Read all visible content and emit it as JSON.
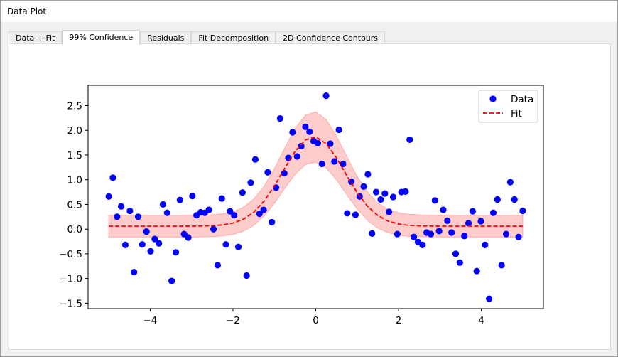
{
  "window": {
    "title": "Data Plot"
  },
  "tabs": [
    "Data + Fit",
    "99% Confidence",
    "Residuals",
    "Fit Decomposition",
    "2D Confidence Contours"
  ],
  "active_tab": 1,
  "chart_data": {
    "type": "scatter",
    "x": [
      -5.0,
      -4.9,
      -4.8,
      -4.7,
      -4.6,
      -4.49,
      -4.39,
      -4.29,
      -4.19,
      -4.09,
      -3.99,
      -3.89,
      -3.79,
      -3.69,
      -3.59,
      -3.48,
      -3.38,
      -3.28,
      -3.18,
      -3.08,
      -2.98,
      -2.88,
      -2.78,
      -2.68,
      -2.58,
      -2.47,
      -2.37,
      -2.27,
      -2.17,
      -2.07,
      -1.97,
      -1.87,
      -1.77,
      -1.67,
      -1.57,
      -1.46,
      -1.36,
      -1.26,
      -1.16,
      -1.06,
      -0.96,
      -0.86,
      -0.76,
      -0.66,
      -0.56,
      -0.45,
      -0.35,
      -0.25,
      -0.15,
      -0.05,
      0.05,
      0.15,
      0.25,
      0.35,
      0.45,
      0.56,
      0.66,
      0.76,
      0.86,
      0.96,
      1.06,
      1.16,
      1.26,
      1.36,
      1.46,
      1.57,
      1.67,
      1.77,
      1.87,
      1.97,
      2.07,
      2.17,
      2.27,
      2.37,
      2.47,
      2.58,
      2.68,
      2.78,
      2.88,
      2.98,
      3.08,
      3.18,
      3.28,
      3.38,
      3.48,
      3.59,
      3.69,
      3.79,
      3.89,
      3.99,
      4.09,
      4.19,
      4.29,
      4.39,
      4.49,
      4.6,
      4.7,
      4.8,
      4.9,
      5.0
    ],
    "series": [
      {
        "name": "Data",
        "color": "#0000ff",
        "values": [
          0.66,
          1.04,
          0.25,
          0.46,
          -0.32,
          0.37,
          -0.87,
          0.25,
          -0.31,
          -0.05,
          -0.45,
          -0.2,
          -0.29,
          0.5,
          0.33,
          -1.05,
          -0.47,
          0.59,
          -0.1,
          -0.17,
          0.67,
          0.28,
          0.34,
          0.33,
          0.39,
          0.0,
          -0.73,
          0.62,
          -0.31,
          0.36,
          0.28,
          -0.36,
          0.74,
          -0.94,
          0.94,
          1.41,
          0.31,
          0.39,
          1.15,
          0.14,
          0.84,
          2.24,
          1.13,
          1.44,
          1.96,
          1.47,
          1.68,
          2.07,
          1.97,
          1.78,
          1.74,
          1.32,
          2.7,
          1.73,
          1.37,
          2.01,
          1.32,
          0.32,
          0.96,
          0.29,
          0.66,
          0.86,
          1.11,
          -0.09,
          0.75,
          0.6,
          0.72,
          0.35,
          0.65,
          -0.1,
          0.75,
          0.76,
          1.81,
          -0.16,
          -0.26,
          -0.32,
          -0.07,
          -0.1,
          0.58,
          -0.04,
          0.39,
          0.17,
          -0.07,
          -0.5,
          -0.68,
          -0.14,
          0.12,
          0.36,
          -0.85,
          0.16,
          -0.32,
          -1.41,
          0.33,
          0.6,
          -0.73,
          -0.1,
          0.95,
          0.6,
          -0.16,
          0.37
        ]
      },
      {
        "name": "Fit",
        "color": "#ff0000",
        "line": "dashed",
        "x": [
          -5,
          -4.75,
          -4.5,
          -4.25,
          -4,
          -3.75,
          -3.5,
          -3.25,
          -3,
          -2.75,
          -2.5,
          -2.25,
          -2,
          -1.75,
          -1.5,
          -1.25,
          -1,
          -0.75,
          -0.5,
          -0.25,
          0,
          0.25,
          0.5,
          0.75,
          1,
          1.25,
          1.5,
          1.75,
          2,
          2.25,
          2.5,
          2.75,
          3,
          3.25,
          3.5,
          3.75,
          4,
          4.25,
          4.5,
          4.75,
          5
        ],
        "values": [
          0.06,
          0.06,
          0.06,
          0.06,
          0.06,
          0.06,
          0.06,
          0.06,
          0.061,
          0.063,
          0.069,
          0.085,
          0.122,
          0.199,
          0.339,
          0.563,
          0.871,
          1.231,
          1.572,
          1.807,
          1.866,
          1.731,
          1.443,
          1.084,
          0.739,
          0.463,
          0.274,
          0.162,
          0.103,
          0.076,
          0.066,
          0.062,
          0.06,
          0.06,
          0.06,
          0.06,
          0.06,
          0.06,
          0.06,
          0.06,
          0.06
        ],
        "band": {
          "color": "#ffcccc",
          "edge": "#ffaaaa",
          "upper": [
            0.28,
            0.28,
            0.28,
            0.28,
            0.28,
            0.28,
            0.28,
            0.28,
            0.281,
            0.283,
            0.29,
            0.309,
            0.352,
            0.441,
            0.604,
            0.864,
            1.221,
            1.639,
            2.034,
            2.307,
            2.375,
            2.219,
            1.885,
            1.468,
            1.068,
            0.748,
            0.528,
            0.398,
            0.33,
            0.299,
            0.287,
            0.282,
            0.28,
            0.28,
            0.28,
            0.28,
            0.28,
            0.28,
            0.28,
            0.28,
            0.28
          ],
          "lower": [
            -0.16,
            -0.16,
            -0.16,
            -0.16,
            -0.16,
            -0.16,
            -0.16,
            -0.16,
            -0.159,
            -0.157,
            -0.152,
            -0.139,
            -0.108,
            -0.043,
            0.074,
            0.262,
            0.521,
            0.823,
            1.11,
            1.307,
            1.357,
            1.243,
            1.001,
            0.7,
            0.41,
            0.178,
            0.02,
            -0.074,
            -0.124,
            -0.147,
            -0.155,
            -0.158,
            -0.16,
            -0.16,
            -0.16,
            -0.16,
            -0.16,
            -0.16,
            -0.16,
            -0.16,
            -0.16
          ]
        }
      }
    ],
    "xlim": [
      -5.5,
      5.5
    ],
    "ylim": [
      -1.61,
      2.91
    ],
    "xticks": [
      {
        "value": -4,
        "label": "−4"
      },
      {
        "value": -2,
        "label": "−2"
      },
      {
        "value": 0,
        "label": "0"
      },
      2,
      4
    ],
    "yticks": [
      {
        "value": -1.5,
        "label": "−1.5"
      },
      {
        "value": -1,
        "label": "−1.0"
      },
      {
        "value": -0.5,
        "label": "−0.5"
      },
      {
        "value": 0,
        "label": "0.0"
      },
      0.5,
      {
        "value": 1,
        "label": "1.0"
      },
      1.5,
      {
        "value": 2,
        "label": "2.0"
      },
      2.5
    ],
    "legend": "upper right"
  }
}
